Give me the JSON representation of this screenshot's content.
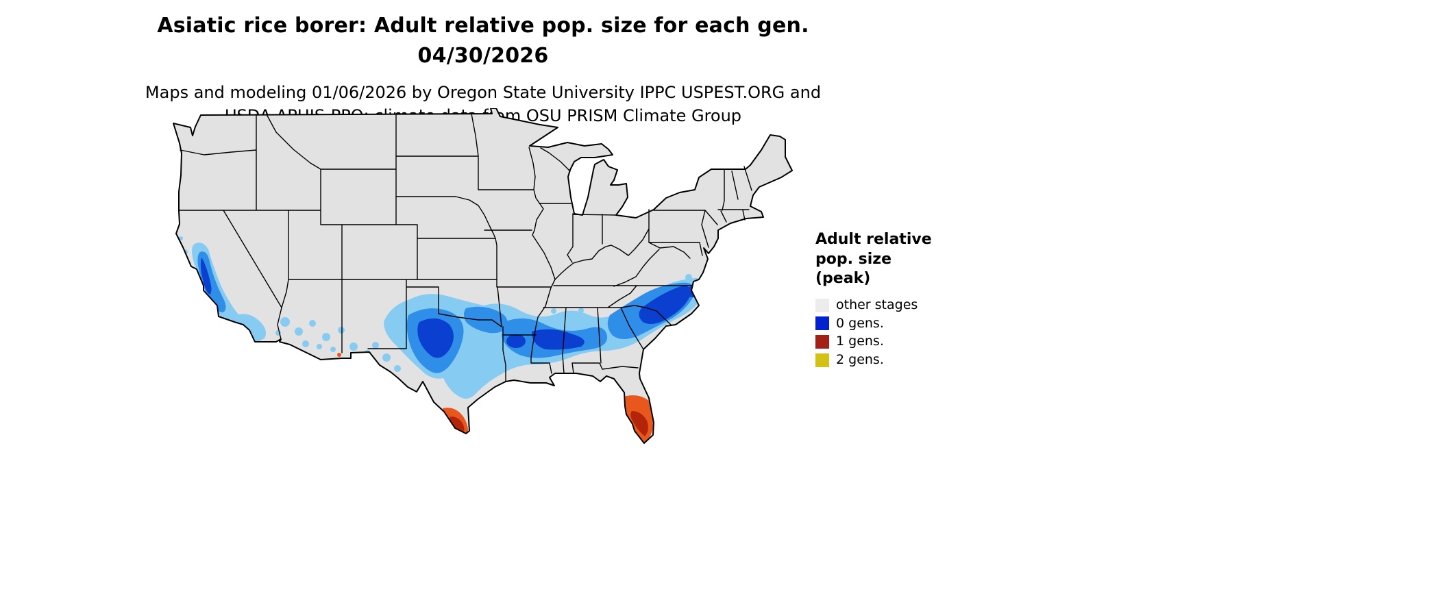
{
  "title": {
    "line1": "Asiatic rice borer: Adult relative pop. size for each gen.",
    "line2": "04/30/2026"
  },
  "subtitle": {
    "line1": "Maps and modeling 01/06/2026 by Oregon State University IPPC USPEST.ORG and",
    "line2": "USDA-APHIS-PPQ; climate data from OSU PRISM Climate Group"
  },
  "legend": {
    "title_lines": [
      "Adult relative",
      "pop. size",
      "(peak)"
    ],
    "items": [
      {
        "label": "other stages",
        "color": "#ececec"
      },
      {
        "label": "0 gens.",
        "color": "#0023cf"
      },
      {
        "label": "1 gens.",
        "color": "#a22016"
      },
      {
        "label": "2 gens.",
        "color": "#d3c118"
      }
    ]
  },
  "map": {
    "region": "Contiguous United States",
    "base_fill": "#e2e2e2",
    "border_color": "#000000",
    "zones": [
      {
        "legend": "0 gens.",
        "colors": [
          "#86cbf2",
          "#2f8fe8",
          "#0a3fd0"
        ],
        "coverage": "Southern band: central and coastal California, southern Arizona and New Mexico, central Texas through Oklahoma, Arkansas, Louisiana, Mississippi, Alabama, Georgia and the Carolinas"
      },
      {
        "legend": "1 gens.",
        "colors": [
          "#e8581c",
          "#b22508"
        ],
        "coverage": "Southern tip of Texas and southern Florida"
      }
    ]
  }
}
